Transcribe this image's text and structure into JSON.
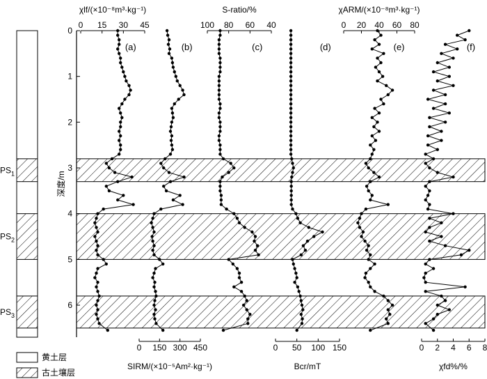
{
  "chart_data": {
    "type": "line",
    "depth_axis": {
      "label": "深度/m",
      "ylim": [
        0,
        6.7
      ],
      "ticks": [
        0,
        1,
        2,
        3,
        4,
        5,
        6
      ]
    },
    "panels": [
      {
        "id": "a",
        "label": "(a)",
        "axis_position": "top",
        "axis_title": "χlf/(×10⁻⁸m³·kg⁻¹)",
        "xlim": [
          0,
          45
        ],
        "ticks": [
          0,
          15,
          30,
          45
        ],
        "reversed": false,
        "series": [
          {
            "depth": [
              0.0,
              0.1,
              0.2,
              0.3,
              0.4,
              0.5,
              0.6,
              0.7,
              0.8,
              0.9,
              1.0,
              1.1,
              1.2,
              1.3,
              1.4,
              1.5,
              1.6,
              1.7,
              1.8,
              1.9,
              2.0,
              2.1,
              2.2,
              2.3,
              2.4,
              2.5,
              2.6,
              2.7,
              2.8,
              2.9,
              3.0,
              3.1,
              3.2,
              3.3,
              3.4,
              3.5,
              3.6,
              3.7,
              3.8,
              3.9,
              4.0,
              4.1,
              4.2,
              4.3,
              4.4,
              4.5,
              4.6,
              4.7,
              4.8,
              4.9,
              5.0,
              5.1,
              5.2,
              5.3,
              5.4,
              5.5,
              5.6,
              5.7,
              5.8,
              5.9,
              6.0,
              6.1,
              6.2,
              6.3,
              6.4,
              6.55
            ],
            "values": [
              26,
              26,
              27,
              27,
              26,
              27,
              28,
              28,
              29,
              30,
              31,
              32,
              34,
              35,
              34,
              31,
              29,
              27,
              28,
              29,
              28,
              28,
              27,
              28,
              27,
              28,
              28,
              27,
              22,
              18,
              20,
              24,
              36,
              26,
              18,
              20,
              30,
              26,
              37,
              16,
              12,
              11,
              10,
              11,
              12,
              10,
              11,
              12,
              11,
              12,
              16,
              18,
              12,
              11,
              10,
              12,
              11,
              12,
              13,
              12,
              11,
              12,
              11,
              12,
              13,
              19
            ]
          }
        ]
      },
      {
        "id": "b",
        "label": "(b)",
        "axis_position": "bottom",
        "axis_title": "SIRM/(×10⁻⁵Am²·kg⁻¹)",
        "xlim": [
          0,
          450
        ],
        "ticks": [
          0,
          150,
          300,
          450
        ],
        "reversed": false,
        "series": [
          {
            "depth": [
              0.0,
              0.1,
              0.2,
              0.3,
              0.4,
              0.5,
              0.6,
              0.7,
              0.8,
              0.9,
              1.0,
              1.1,
              1.2,
              1.3,
              1.4,
              1.5,
              1.6,
              1.7,
              1.8,
              1.9,
              2.0,
              2.1,
              2.2,
              2.3,
              2.4,
              2.5,
              2.6,
              2.7,
              2.8,
              2.9,
              3.0,
              3.1,
              3.2,
              3.3,
              3.4,
              3.5,
              3.6,
              3.7,
              3.8,
              3.9,
              4.0,
              4.1,
              4.2,
              4.3,
              4.4,
              4.5,
              4.6,
              4.7,
              4.8,
              4.9,
              5.0,
              5.1,
              5.2,
              5.3,
              5.4,
              5.5,
              5.6,
              5.7,
              5.8,
              5.9,
              6.0,
              6.1,
              6.2,
              6.3,
              6.4,
              6.55
            ],
            "values": [
              205,
              210,
              220,
              215,
              225,
              220,
              240,
              245,
              250,
              260,
              270,
              280,
              300,
              320,
              330,
              290,
              260,
              240,
              245,
              250,
              240,
              235,
              230,
              240,
              235,
              240,
              245,
              230,
              190,
              160,
              180,
              220,
              330,
              230,
              180,
              200,
              300,
              250,
              320,
              160,
              110,
              100,
              90,
              100,
              110,
              95,
              100,
              110,
              100,
              110,
              150,
              175,
              120,
              110,
              100,
              115,
              110,
              120,
              125,
              115,
              110,
              120,
              110,
              115,
              125,
              175
            ]
          }
        ]
      },
      {
        "id": "c",
        "label": "(c)",
        "axis_position": "top",
        "axis_title": "S-ratio/%",
        "xlim": [
          100,
          40
        ],
        "ticks": [
          100,
          80,
          60,
          40
        ],
        "reversed": true,
        "series": [
          {
            "depth": [
              0.0,
              0.1,
              0.2,
              0.3,
              0.4,
              0.5,
              0.6,
              0.7,
              0.8,
              0.9,
              1.0,
              1.1,
              1.2,
              1.3,
              1.4,
              1.5,
              1.6,
              1.7,
              1.8,
              1.9,
              2.0,
              2.1,
              2.2,
              2.3,
              2.4,
              2.5,
              2.6,
              2.7,
              2.8,
              2.9,
              3.0,
              3.1,
              3.2,
              3.3,
              3.4,
              3.5,
              3.6,
              3.7,
              3.8,
              3.9,
              4.0,
              4.1,
              4.2,
              4.3,
              4.4,
              4.5,
              4.6,
              4.7,
              4.8,
              4.9,
              5.0,
              5.1,
              5.2,
              5.3,
              5.4,
              5.5,
              5.6,
              5.7,
              5.8,
              5.9,
              6.0,
              6.1,
              6.2,
              6.3,
              6.4,
              6.55
            ],
            "values": [
              88,
              88,
              89,
              89,
              89,
              89,
              88,
              88,
              88,
              88,
              89,
              89,
              89,
              89,
              89,
              89,
              88,
              88,
              89,
              89,
              88,
              88,
              88,
              89,
              89,
              88,
              88,
              88,
              85,
              78,
              75,
              80,
              86,
              88,
              88,
              88,
              87,
              87,
              87,
              82,
              75,
              72,
              70,
              65,
              58,
              55,
              56,
              53,
              55,
              52,
              80,
              76,
              72,
              70,
              70,
              68,
              75,
              68,
              65,
              63,
              66,
              63,
              60,
              62,
              62,
              85
            ]
          }
        ]
      },
      {
        "id": "d",
        "label": "(d)",
        "axis_position": "bottom",
        "axis_title": "Bcr/mT",
        "xlim": [
          0,
          150
        ],
        "ticks": [
          0,
          50,
          100,
          150
        ],
        "reversed": false,
        "series": [
          {
            "depth": [
              0.0,
              0.1,
              0.2,
              0.3,
              0.4,
              0.5,
              0.6,
              0.7,
              0.8,
              0.9,
              1.0,
              1.1,
              1.2,
              1.3,
              1.4,
              1.5,
              1.6,
              1.7,
              1.8,
              1.9,
              2.0,
              2.1,
              2.2,
              2.3,
              2.4,
              2.5,
              2.6,
              2.7,
              2.8,
              2.9,
              3.0,
              3.1,
              3.2,
              3.3,
              3.4,
              3.5,
              3.6,
              3.7,
              3.8,
              3.9,
              4.0,
              4.1,
              4.2,
              4.3,
              4.4,
              4.5,
              4.6,
              4.7,
              4.8,
              4.9,
              5.0,
              5.1,
              5.2,
              5.3,
              5.4,
              5.5,
              5.6,
              5.7,
              5.8,
              5.9,
              6.0,
              6.1,
              6.2,
              6.3,
              6.4,
              6.55
            ],
            "values": [
              36,
              36,
              36,
              36,
              36,
              36,
              36,
              36,
              36,
              36,
              36,
              36,
              36,
              36,
              36,
              36,
              36,
              36,
              36,
              36,
              36,
              36,
              36,
              36,
              36,
              36,
              36,
              36,
              38,
              40,
              42,
              40,
              38,
              37,
              37,
              37,
              37,
              37,
              37,
              40,
              48,
              52,
              58,
              78,
              110,
              90,
              75,
              65,
              70,
              60,
              40,
              42,
              45,
              48,
              50,
              45,
              52,
              55,
              58,
              60,
              62,
              64,
              60,
              63,
              62,
              50
            ]
          }
        ]
      },
      {
        "id": "e",
        "label": "(e)",
        "axis_position": "top",
        "axis_title": "χARM/(×10⁻⁸m³·kg⁻¹)",
        "xlim": [
          0,
          80
        ],
        "ticks": [
          0,
          20,
          40,
          60,
          80
        ],
        "reversed": false,
        "series": [
          {
            "depth": [
              0.0,
              0.1,
              0.2,
              0.3,
              0.4,
              0.5,
              0.6,
              0.7,
              0.8,
              0.9,
              1.0,
              1.1,
              1.2,
              1.3,
              1.4,
              1.5,
              1.6,
              1.7,
              1.8,
              1.9,
              2.0,
              2.1,
              2.2,
              2.3,
              2.4,
              2.5,
              2.6,
              2.7,
              2.8,
              2.9,
              3.0,
              3.1,
              3.2,
              3.3,
              3.4,
              3.5,
              3.6,
              3.7,
              3.8,
              3.9,
              4.0,
              4.1,
              4.2,
              4.3,
              4.4,
              4.5,
              4.6,
              4.7,
              4.8,
              4.9,
              5.0,
              5.1,
              5.2,
              5.3,
              5.4,
              5.5,
              5.6,
              5.7,
              5.8,
              5.9,
              6.0,
              6.1,
              6.2,
              6.3,
              6.4,
              6.55
            ],
            "values": [
              38,
              42,
              35,
              40,
              32,
              45,
              38,
              42,
              36,
              40,
              44,
              38,
              48,
              55,
              50,
              42,
              45,
              35,
              40,
              32,
              38,
              34,
              40,
              32,
              36,
              30,
              34,
              32,
              30,
              25,
              28,
              34,
              40,
              30,
              26,
              28,
              32,
              30,
              50,
              25,
              20,
              18,
              16,
              18,
              22,
              20,
              24,
              28,
              26,
              30,
              28,
              35,
              30,
              25,
              24,
              28,
              30,
              35,
              45,
              50,
              55,
              50,
              52,
              48,
              50,
              30
            ]
          }
        ]
      },
      {
        "id": "f",
        "label": "(f)",
        "axis_position": "bottom",
        "axis_title": "χfd%/%",
        "xlim": [
          0,
          8
        ],
        "ticks": [
          0,
          2,
          4,
          6,
          8
        ],
        "reversed": false,
        "series": [
          {
            "depth": [
              0.0,
              0.1,
              0.2,
              0.3,
              0.4,
              0.5,
              0.6,
              0.7,
              0.8,
              0.9,
              1.0,
              1.1,
              1.2,
              1.3,
              1.4,
              1.5,
              1.6,
              1.7,
              1.8,
              1.9,
              2.0,
              2.1,
              2.2,
              2.3,
              2.4,
              2.5,
              2.6,
              2.7,
              2.8,
              2.9,
              3.0,
              3.1,
              3.2,
              3.3,
              3.4,
              3.5,
              3.6,
              3.7,
              3.8,
              3.9,
              4.0,
              4.1,
              4.2,
              4.3,
              4.4,
              4.5,
              4.6,
              4.7,
              4.8,
              4.9,
              5.0,
              5.1,
              5.2,
              5.3,
              5.4,
              5.5,
              5.6,
              5.7,
              5.8,
              5.9,
              6.0,
              6.1,
              6.2,
              6.3,
              6.4,
              6.55
            ],
            "values": [
              6.0,
              4.5,
              5.5,
              3.0,
              4.5,
              2.5,
              4.0,
              2.0,
              3.5,
              1.5,
              3.5,
              2.0,
              4.0,
              1.5,
              3.0,
              0.8,
              3.0,
              1.5,
              3.5,
              1.0,
              3.0,
              1.0,
              2.5,
              0.8,
              2.5,
              0.8,
              2.0,
              0.5,
              1.5,
              0.5,
              1.0,
              2.0,
              4.0,
              1.0,
              0.5,
              1.0,
              0.8,
              0.5,
              1.0,
              0.8,
              4.0,
              1.0,
              2.5,
              1.0,
              0.5,
              2.5,
              1.0,
              3.0,
              6.0,
              5.0,
              1.0,
              0.5,
              1.5,
              0.5,
              0.3,
              0.5,
              5.5,
              0.5,
              2.5,
              3.0,
              2.0,
              3.5,
              2.0,
              1.5,
              0.5,
              1.5
            ]
          }
        ]
      }
    ],
    "paleosol_layers": [
      {
        "label_main": "PS",
        "label_sub": "1",
        "top": 2.8,
        "bottom": 3.3
      },
      {
        "label_main": "PS",
        "label_sub": "2",
        "top": 4.0,
        "bottom": 5.0
      },
      {
        "label_main": "PS",
        "label_sub": "3",
        "top": 5.8,
        "bottom": 6.5
      }
    ],
    "legend": [
      {
        "label": "黄土层",
        "pattern": "plain"
      },
      {
        "label": "古土壤层",
        "pattern": "hatched"
      }
    ]
  }
}
